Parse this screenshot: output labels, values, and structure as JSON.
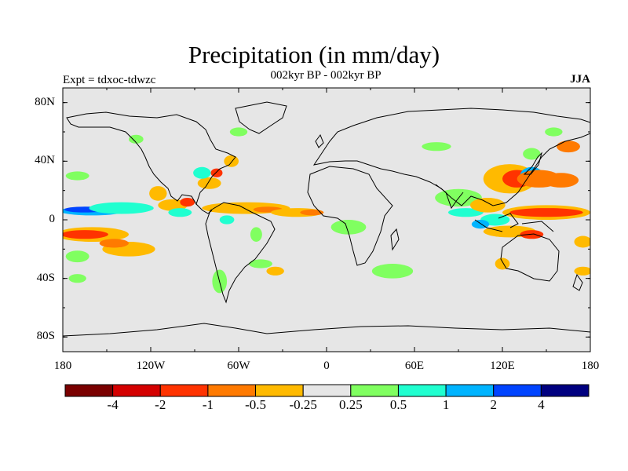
{
  "title": "Precipitation (in mm/day)",
  "subtitle": "002kyr BP - 002kyr BP",
  "left_string": "Expt = tdxoc-tdwzc",
  "right_string": "JJA",
  "colors": {
    "land_sea_background": "#e6e6e6",
    "coastline": "#000000"
  },
  "chart_data": {
    "type": "heatmap",
    "projection": "cylindrical-equidistant",
    "lon_range": [
      -180,
      180
    ],
    "lat_range": [
      -90,
      90
    ],
    "y_ticks": [
      {
        "value": 80,
        "label": "80N"
      },
      {
        "value": 40,
        "label": "40N"
      },
      {
        "value": 0,
        "label": "0"
      },
      {
        "value": -40,
        "label": "40S"
      },
      {
        "value": -80,
        "label": "80S"
      }
    ],
    "x_ticks": [
      {
        "value": -180,
        "label": "180"
      },
      {
        "value": -120,
        "label": "120W"
      },
      {
        "value": -60,
        "label": "60W"
      },
      {
        "value": 0,
        "label": "0"
      },
      {
        "value": 60,
        "label": "60E"
      },
      {
        "value": 120,
        "label": "120E"
      },
      {
        "value": 180,
        "label": "180"
      }
    ],
    "colorbar": {
      "levels": [
        "-4",
        "-2",
        "-1",
        "-0.5",
        "-0.25",
        "0.25",
        "0.5",
        "1",
        "2",
        "4"
      ],
      "colors": [
        "#7a0000",
        "#d40000",
        "#ff3300",
        "#ff7a00",
        "#ffba00",
        "#e6e6e6",
        "#80ff60",
        "#20ffd0",
        "#00b4ff",
        "#0044ff",
        "#000080"
      ]
    },
    "anomaly_regions": [
      {
        "lon": -160,
        "lat": 6,
        "rlon": 22,
        "rlat": 3,
        "color": "#00b4ff"
      },
      {
        "lon": -165,
        "lat": 7,
        "rlon": 14,
        "rlat": 2,
        "color": "#0044ff"
      },
      {
        "lon": -140,
        "lat": 8,
        "rlon": 22,
        "rlat": 4,
        "color": "#20ffd0"
      },
      {
        "lon": -160,
        "lat": -10,
        "rlon": 25,
        "rlat": 5,
        "color": "#ffba00"
      },
      {
        "lon": -165,
        "lat": -10,
        "rlon": 16,
        "rlat": 3,
        "color": "#ff3300"
      },
      {
        "lon": -135,
        "lat": -20,
        "rlon": 18,
        "rlat": 5,
        "color": "#ffba00"
      },
      {
        "lon": -145,
        "lat": -16,
        "rlon": 10,
        "rlat": 3,
        "color": "#ff7a00"
      },
      {
        "lon": -170,
        "lat": -25,
        "rlon": 8,
        "rlat": 4,
        "color": "#80ff60"
      },
      {
        "lon": -115,
        "lat": 18,
        "rlon": 6,
        "rlat": 5,
        "color": "#ffba00"
      },
      {
        "lon": -105,
        "lat": 10,
        "rlon": 10,
        "rlat": 4,
        "color": "#ffba00"
      },
      {
        "lon": -95,
        "lat": 12,
        "rlon": 5,
        "rlat": 3,
        "color": "#ff3300"
      },
      {
        "lon": -100,
        "lat": 5,
        "rlon": 8,
        "rlat": 3,
        "color": "#20ffd0"
      },
      {
        "lon": -80,
        "lat": 25,
        "rlon": 8,
        "rlat": 4,
        "color": "#ffba00"
      },
      {
        "lon": -75,
        "lat": 32,
        "rlon": 4,
        "rlat": 3,
        "color": "#ff3300"
      },
      {
        "lon": -85,
        "lat": 32,
        "rlon": 6,
        "rlat": 4,
        "color": "#20ffd0"
      },
      {
        "lon": -65,
        "lat": 40,
        "rlon": 5,
        "rlat": 4,
        "color": "#ffba00"
      },
      {
        "lon": -55,
        "lat": 8,
        "rlon": 30,
        "rlat": 4,
        "color": "#ffba00"
      },
      {
        "lon": -40,
        "lat": 7,
        "rlon": 10,
        "rlat": 2,
        "color": "#ff7a00"
      },
      {
        "lon": -20,
        "lat": 5,
        "rlon": 18,
        "rlat": 3,
        "color": "#ffba00"
      },
      {
        "lon": -10,
        "lat": 5,
        "rlon": 8,
        "rlat": 2,
        "color": "#ff7a00"
      },
      {
        "lon": 15,
        "lat": -5,
        "rlon": 12,
        "rlat": 5,
        "color": "#80ff60"
      },
      {
        "lon": -68,
        "lat": 0,
        "rlon": 5,
        "rlat": 3,
        "color": "#20ffd0"
      },
      {
        "lon": -73,
        "lat": -42,
        "rlon": 5,
        "rlat": 8,
        "color": "#80ff60"
      },
      {
        "lon": -48,
        "lat": -10,
        "rlon": 4,
        "rlat": 5,
        "color": "#80ff60"
      },
      {
        "lon": -45,
        "lat": -30,
        "rlon": 8,
        "rlat": 3,
        "color": "#80ff60"
      },
      {
        "lon": 45,
        "lat": -35,
        "rlon": 14,
        "rlat": 5,
        "color": "#80ff60"
      },
      {
        "lon": 90,
        "lat": 15,
        "rlon": 16,
        "rlat": 6,
        "color": "#80ff60"
      },
      {
        "lon": 95,
        "lat": 5,
        "rlon": 12,
        "rlat": 3,
        "color": "#20ffd0"
      },
      {
        "lon": 110,
        "lat": 10,
        "rlon": 12,
        "rlat": 5,
        "color": "#ffba00"
      },
      {
        "lon": 125,
        "lat": 28,
        "rlon": 18,
        "rlat": 10,
        "color": "#ffba00"
      },
      {
        "lon": 130,
        "lat": 28,
        "rlon": 10,
        "rlat": 6,
        "color": "#ff3300"
      },
      {
        "lon": 140,
        "lat": 30,
        "rlon": 8,
        "rlat": 6,
        "color": "#00b4ff"
      },
      {
        "lon": 145,
        "lat": 28,
        "rlon": 15,
        "rlat": 6,
        "color": "#ff7a00"
      },
      {
        "lon": 160,
        "lat": 27,
        "rlon": 12,
        "rlat": 5,
        "color": "#ff7a00"
      },
      {
        "lon": 150,
        "lat": 5,
        "rlon": 30,
        "rlat": 5,
        "color": "#ffba00"
      },
      {
        "lon": 150,
        "lat": 5,
        "rlon": 25,
        "rlat": 3,
        "color": "#ff3300"
      },
      {
        "lon": 115,
        "lat": 0,
        "rlon": 10,
        "rlat": 4,
        "color": "#20ffd0"
      },
      {
        "lon": 105,
        "lat": -3,
        "rlon": 6,
        "rlat": 3,
        "color": "#00b4ff"
      },
      {
        "lon": 125,
        "lat": -8,
        "rlon": 18,
        "rlat": 4,
        "color": "#ffba00"
      },
      {
        "lon": 140,
        "lat": -10,
        "rlon": 8,
        "rlat": 3,
        "color": "#ff3300"
      },
      {
        "lon": 75,
        "lat": 50,
        "rlon": 10,
        "rlat": 3,
        "color": "#80ff60"
      },
      {
        "lon": 165,
        "lat": 50,
        "rlon": 8,
        "rlat": 4,
        "color": "#ff7a00"
      },
      {
        "lon": 155,
        "lat": 60,
        "rlon": 6,
        "rlat": 3,
        "color": "#80ff60"
      },
      {
        "lon": 140,
        "lat": 45,
        "rlon": 6,
        "rlat": 4,
        "color": "#80ff60"
      },
      {
        "lon": 175,
        "lat": -15,
        "rlon": 6,
        "rlat": 4,
        "color": "#ffba00"
      },
      {
        "lon": 175,
        "lat": -35,
        "rlon": 6,
        "rlat": 3,
        "color": "#ffba00"
      },
      {
        "lon": 120,
        "lat": -30,
        "rlon": 5,
        "rlat": 4,
        "color": "#ffba00"
      },
      {
        "lon": -170,
        "lat": 30,
        "rlon": 8,
        "rlat": 3,
        "color": "#80ff60"
      },
      {
        "lon": -170,
        "lat": -40,
        "rlon": 6,
        "rlat": 3,
        "color": "#80ff60"
      },
      {
        "lon": -130,
        "lat": 55,
        "rlon": 5,
        "rlat": 3,
        "color": "#80ff60"
      },
      {
        "lon": -60,
        "lat": 60,
        "rlon": 6,
        "rlat": 3,
        "color": "#80ff60"
      },
      {
        "lon": -35,
        "lat": -35,
        "rlon": 6,
        "rlat": 3,
        "color": "#ffba00"
      }
    ]
  }
}
